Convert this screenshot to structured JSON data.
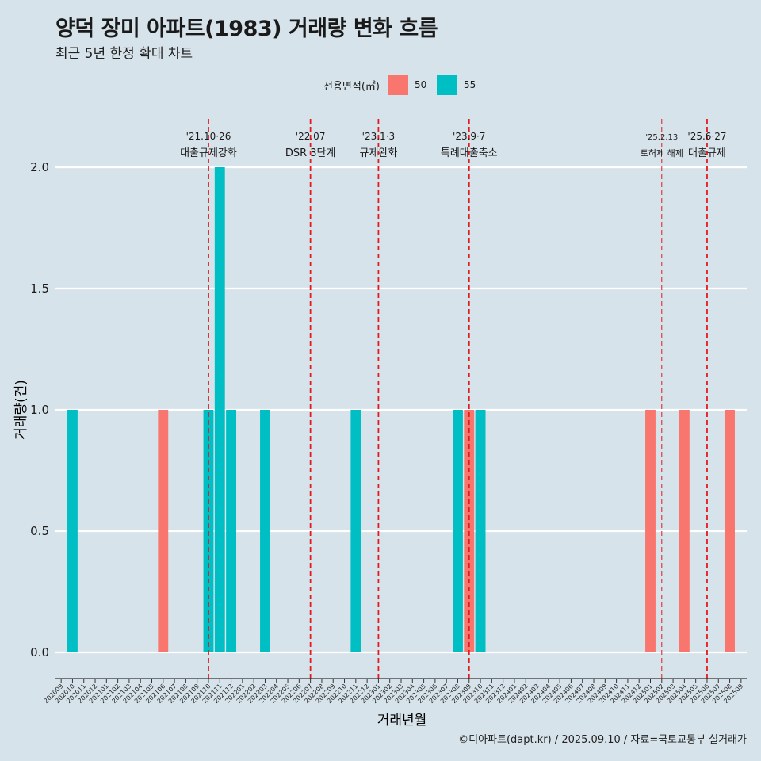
{
  "title": "양덕 장미 아파트(1983) 거래량 변화 흐름",
  "subtitle": "최근 5년 한정 확대 차트",
  "caption": "©디아파트(dapt.kr) / 2025.09.10 / 자료=국토교통부 실거래가",
  "legend": {
    "title": "전용면적(㎡)",
    "items": [
      {
        "label": "50",
        "color": "#F8766D"
      },
      {
        "label": "55",
        "color": "#00BFC4"
      }
    ]
  },
  "chart_data": {
    "type": "bar",
    "xlabel": "거래년월",
    "ylabel": "거래량(건)",
    "ylim": [
      0,
      2
    ],
    "yticks": [
      "0.0",
      "0.5",
      "1.0",
      "1.5",
      "2.0"
    ],
    "grid": true,
    "legend_position": "top",
    "categories": [
      "202009",
      "202010",
      "202011",
      "202012",
      "202101",
      "202102",
      "202103",
      "202104",
      "202105",
      "202106",
      "202107",
      "202108",
      "202109",
      "202110",
      "202111",
      "202112",
      "202201",
      "202202",
      "202203",
      "202204",
      "202205",
      "202206",
      "202207",
      "202208",
      "202209",
      "202210",
      "202211",
      "202212",
      "202301",
      "202302",
      "202303",
      "202304",
      "202305",
      "202306",
      "202307",
      "202308",
      "202309",
      "202310",
      "202311",
      "202312",
      "202401",
      "202402",
      "202403",
      "202404",
      "202405",
      "202406",
      "202407",
      "202408",
      "202409",
      "202410",
      "202411",
      "202412",
      "202501",
      "202502",
      "202503",
      "202504",
      "202505",
      "202506",
      "202507",
      "202508",
      "202509"
    ],
    "series": [
      {
        "name": "50",
        "color": "#F8766D",
        "points": [
          {
            "x": "202106",
            "y": 1
          },
          {
            "x": "202309",
            "y": 1
          },
          {
            "x": "202501",
            "y": 1
          },
          {
            "x": "202504",
            "y": 1
          },
          {
            "x": "202508",
            "y": 1
          }
        ]
      },
      {
        "name": "55",
        "color": "#00BFC4",
        "points": [
          {
            "x": "202010",
            "y": 1
          },
          {
            "x": "202110",
            "y": 1
          },
          {
            "x": "202111",
            "y": 2
          },
          {
            "x": "202112",
            "y": 1
          },
          {
            "x": "202203",
            "y": 1
          },
          {
            "x": "202211",
            "y": 1
          },
          {
            "x": "202308",
            "y": 1
          },
          {
            "x": "202310",
            "y": 1
          }
        ]
      }
    ],
    "annotations": [
      {
        "x": "202110",
        "date": "'21.10·26",
        "label": "대출규제강화",
        "style": "dashed"
      },
      {
        "x": "202207",
        "date": "'22.07",
        "label": "DSR 3단계",
        "style": "dashed"
      },
      {
        "x": "202301",
        "date": "'23.1·3",
        "label": "규제완화",
        "style": "dashed"
      },
      {
        "x": "202309",
        "date": "'23.9·7",
        "label": "특례대출축소",
        "style": "dashed"
      },
      {
        "x": "202502",
        "date": "'25.2.13",
        "label": "토허제 해제",
        "style": "dashed-thin"
      },
      {
        "x": "202506",
        "date": "'25.6·27",
        "label": "대출규제",
        "style": "dashed"
      }
    ],
    "annotation_color": "#E41A1C"
  }
}
